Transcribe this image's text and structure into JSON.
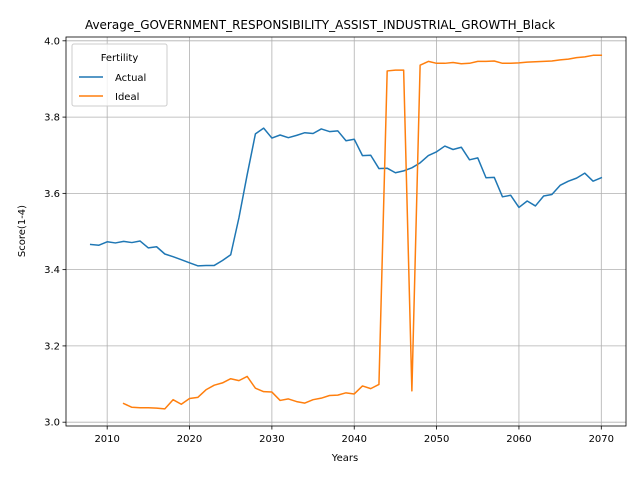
{
  "chart_data": {
    "type": "line",
    "title": "Average_GOVERNMENT_RESPONSIBILITY_ASSIST_INDUSTRIAL_GROWTH_Black",
    "xlabel": "Years",
    "ylabel": "Score(1-4)",
    "xlim": [
      2005,
      2073
    ],
    "ylim": [
      2.99,
      4.01
    ],
    "xticks": [
      2010,
      2020,
      2030,
      2040,
      2050,
      2060,
      2070
    ],
    "yticks": [
      3.0,
      3.2,
      3.4,
      3.6,
      3.8,
      4.0
    ],
    "grid": true,
    "legend": {
      "title": "Fertility",
      "placement": "top-left"
    },
    "series": [
      {
        "name": "Actual",
        "color": "#1f77b4",
        "x": [
          2008,
          2009,
          2010,
          2011,
          2012,
          2013,
          2014,
          2015,
          2016,
          2017,
          2018,
          2019,
          2020,
          2021,
          2022,
          2023,
          2024,
          2025,
          2026,
          2027,
          2028,
          2029,
          2030,
          2031,
          2032,
          2033,
          2034,
          2035,
          2036,
          2037,
          2038,
          2039,
          2040,
          2041,
          2042,
          2043,
          2044,
          2045,
          2046,
          2047,
          2048,
          2049,
          2050,
          2051,
          2052,
          2053,
          2054,
          2055,
          2056,
          2057,
          2058,
          2059,
          2060,
          2061,
          2062,
          2063,
          2064,
          2065,
          2066,
          2067,
          2068,
          2069,
          2070
        ],
        "values": [
          3.466,
          3.464,
          3.473,
          3.47,
          3.474,
          3.471,
          3.475,
          3.457,
          3.46,
          3.441,
          3.434,
          3.426,
          3.418,
          3.41,
          3.411,
          3.411,
          3.424,
          3.439,
          3.536,
          3.649,
          3.756,
          3.771,
          3.745,
          3.753,
          3.746,
          3.752,
          3.759,
          3.757,
          3.769,
          3.762,
          3.764,
          3.738,
          3.742,
          3.699,
          3.7,
          3.665,
          3.666,
          3.654,
          3.659,
          3.667,
          3.68,
          3.699,
          3.709,
          3.724,
          3.715,
          3.721,
          3.688,
          3.693,
          3.641,
          3.642,
          3.591,
          3.595,
          3.563,
          3.58,
          3.567,
          3.593,
          3.597,
          3.621,
          3.632,
          3.64,
          3.653,
          3.632,
          3.641
        ]
      },
      {
        "name": "Ideal",
        "color": "#ff7f0e",
        "x": [
          2012,
          2013,
          2014,
          2015,
          2016,
          2017,
          2018,
          2019,
          2020,
          2021,
          2022,
          2023,
          2024,
          2025,
          2026,
          2027,
          2028,
          2029,
          2030,
          2031,
          2032,
          2033,
          2034,
          2035,
          2036,
          2037,
          2038,
          2039,
          2040,
          2041,
          2042,
          2043,
          2044,
          2045,
          2046,
          2047,
          2048,
          2049,
          2050,
          2051,
          2052,
          2053,
          2054,
          2055,
          2056,
          2057,
          2058,
          2059,
          2060,
          2061,
          2062,
          2063,
          2064,
          2065,
          2066,
          2067,
          2068,
          2069,
          2070
        ],
        "values": [
          3.049,
          3.039,
          3.038,
          3.038,
          3.037,
          3.035,
          3.059,
          3.047,
          3.062,
          3.065,
          3.085,
          3.097,
          3.103,
          3.114,
          3.109,
          3.12,
          3.089,
          3.08,
          3.079,
          3.057,
          3.061,
          3.054,
          3.05,
          3.059,
          3.063,
          3.07,
          3.071,
          3.077,
          3.074,
          3.095,
          3.088,
          3.099,
          3.921,
          3.923,
          3.923,
          3.082,
          3.936,
          3.946,
          3.941,
          3.941,
          3.943,
          3.94,
          3.941,
          3.946,
          3.946,
          3.947,
          3.941,
          3.941,
          3.942,
          3.944,
          3.945,
          3.946,
          3.947,
          3.95,
          3.952,
          3.956,
          3.958,
          3.962,
          3.962
        ]
      }
    ]
  }
}
